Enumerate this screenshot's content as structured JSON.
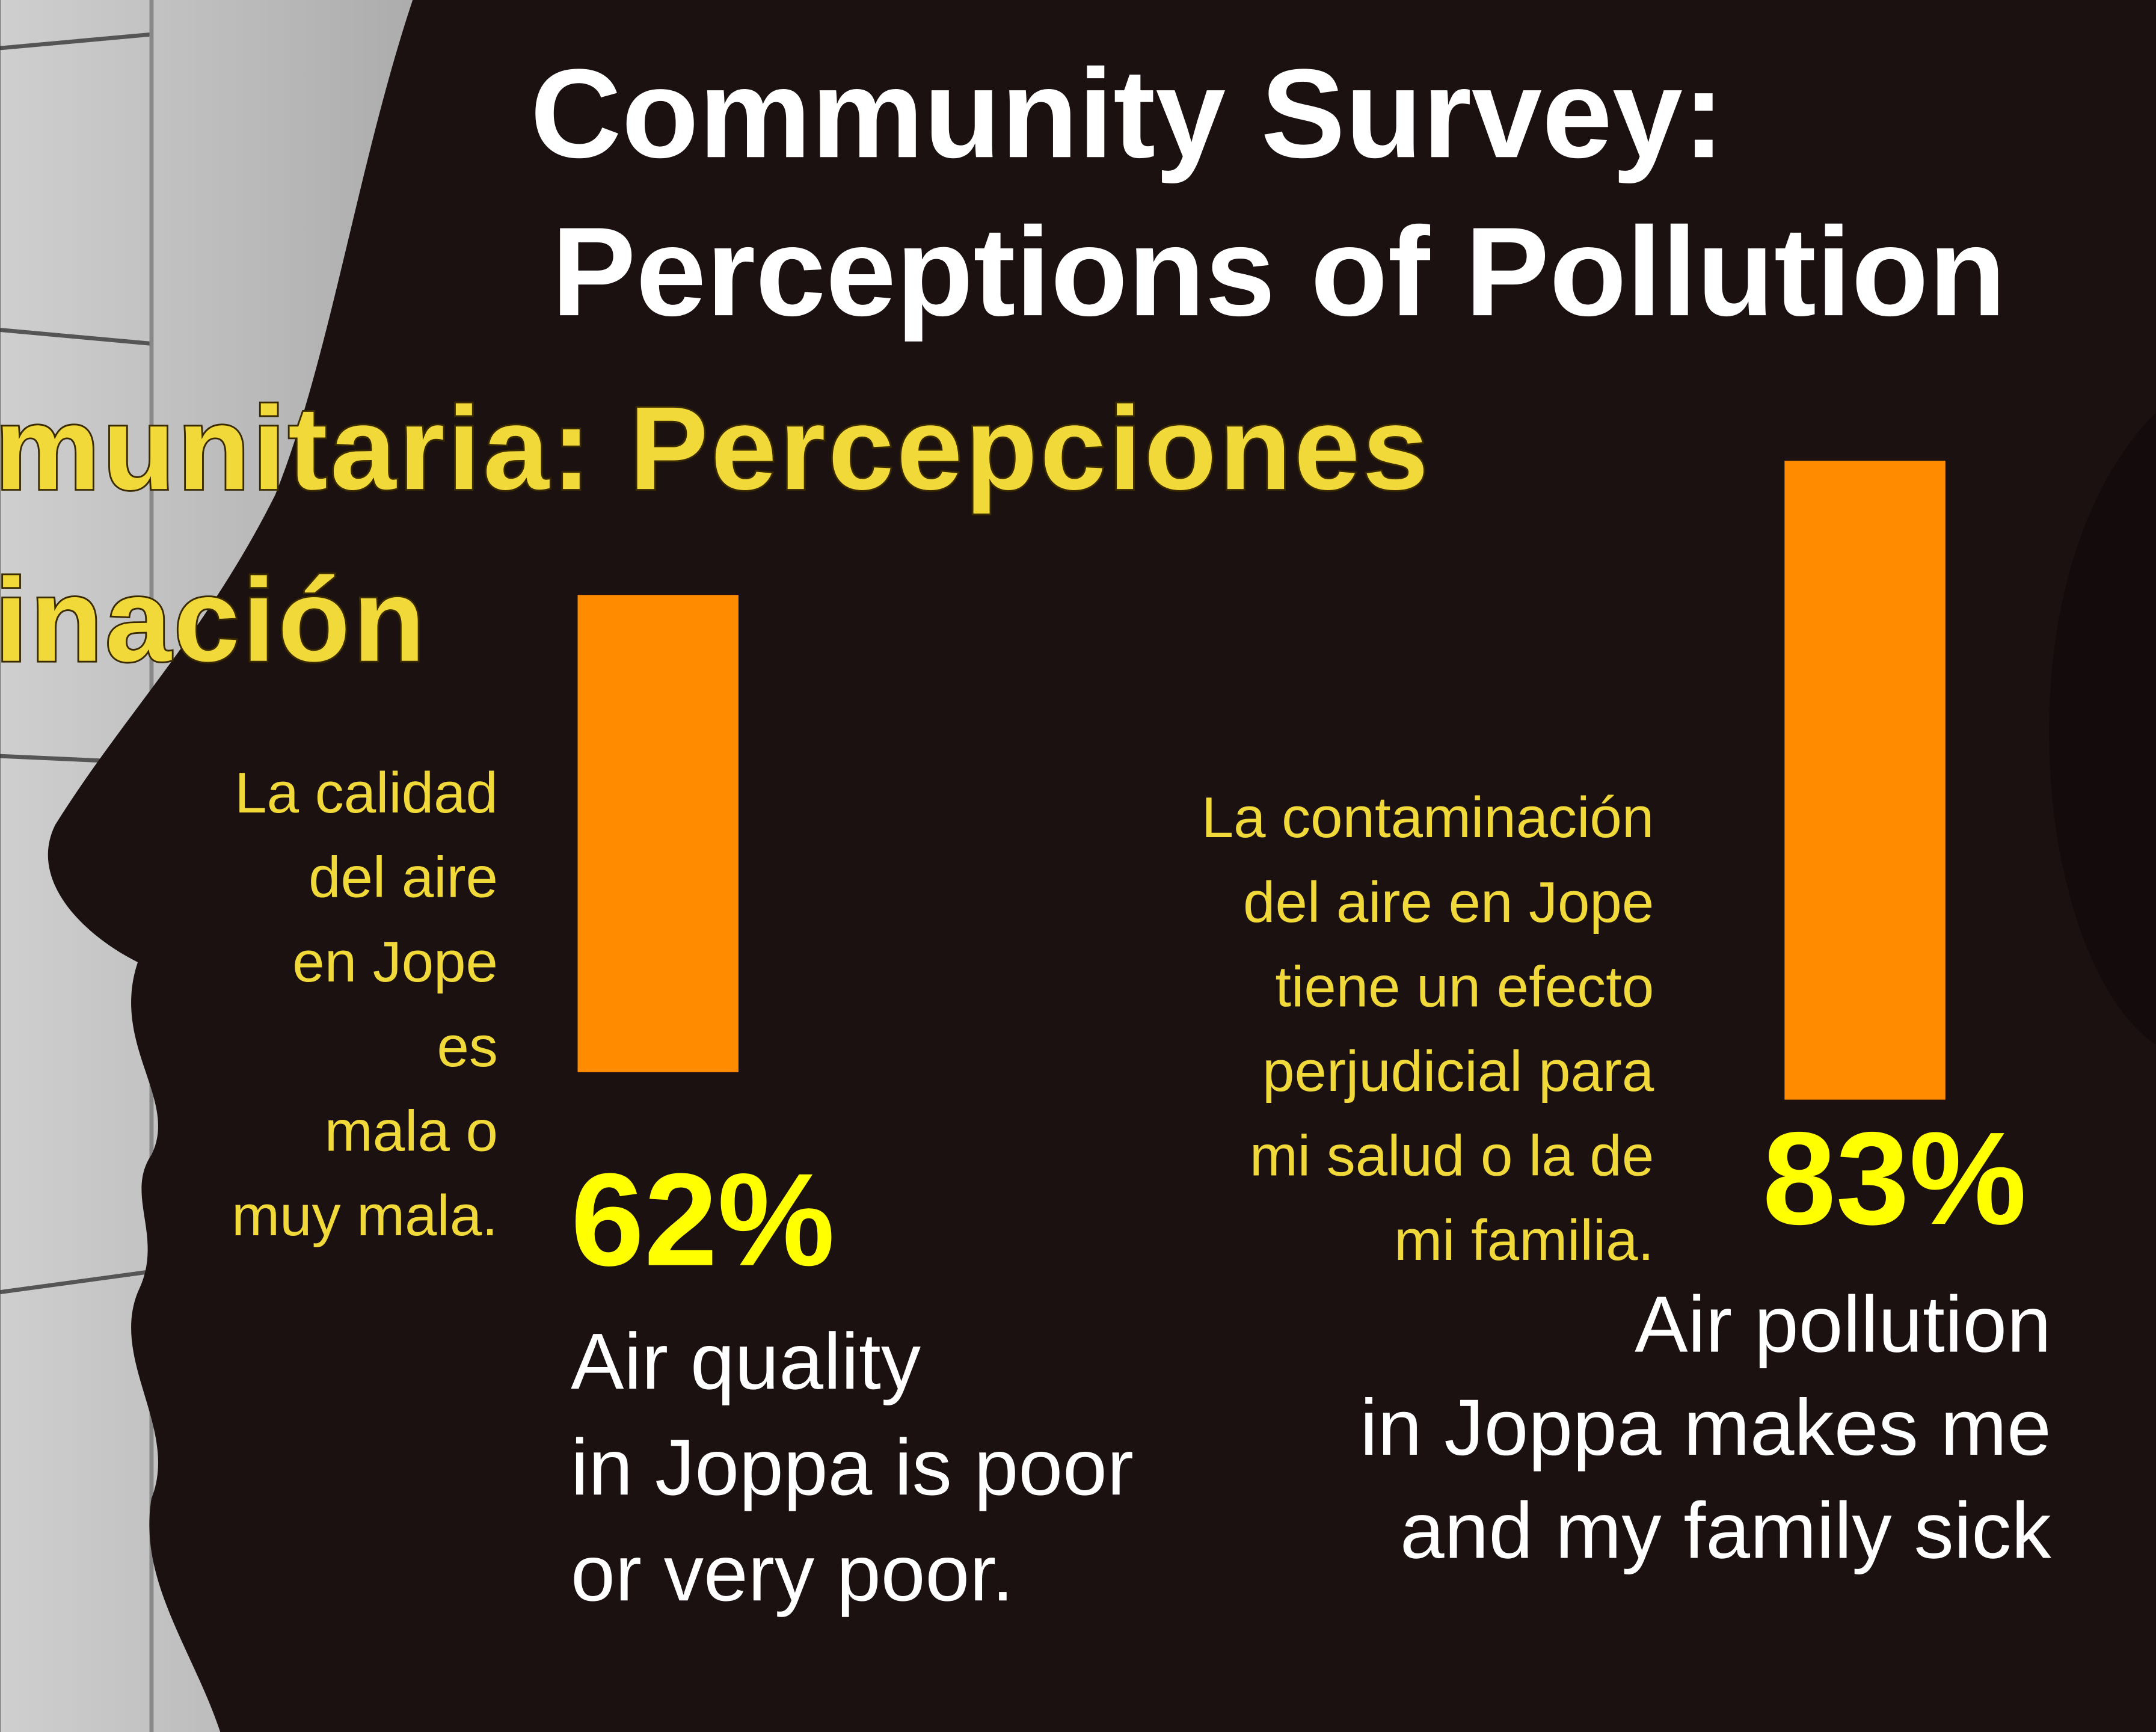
{
  "chart_data": {
    "type": "bar",
    "title": [
      "Community Survey:",
      "Perceptions of Pollution"
    ],
    "subtitle": [
      "munitaria: Percepciones",
      "inación"
    ],
    "categories": [
      [
        "Air quality",
        "in Joppa is poor",
        "or very poor."
      ],
      [
        "Air pollution",
        "in Joppa makes me",
        "and my family sick"
      ]
    ],
    "category_labels_es": [
      [
        "La calidad",
        "del aire",
        "en Jope",
        "es",
        "mala o",
        "muy mala."
      ],
      [
        "La contaminación",
        "del aire en Jope",
        "tiene un efecto",
        "perjudicial para",
        "mi salud o la de",
        "mi familia."
      ]
    ],
    "values": [
      62,
      83
    ],
    "value_labels": [
      "62%",
      "83%"
    ],
    "color": "#ff8c00",
    "ylim": [
      0,
      100
    ]
  }
}
